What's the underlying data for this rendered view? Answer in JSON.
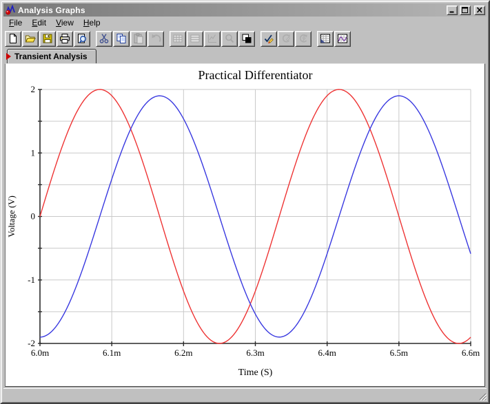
{
  "window": {
    "title": "Analysis Graphs"
  },
  "titlebar_controls": [
    {
      "name": "minimize"
    },
    {
      "name": "maximize"
    },
    {
      "name": "close"
    }
  ],
  "menu": {
    "items": [
      {
        "label": "File"
      },
      {
        "label": "Edit"
      },
      {
        "label": "View"
      },
      {
        "label": "Help"
      }
    ]
  },
  "toolbar": {
    "buttons": [
      {
        "name": "new",
        "disabled": false
      },
      {
        "name": "open",
        "disabled": false
      },
      {
        "name": "save",
        "disabled": false
      },
      {
        "name": "print",
        "disabled": false
      },
      {
        "name": "print-preview",
        "disabled": false
      },
      {
        "name": "cut",
        "disabled": false
      },
      {
        "name": "copy",
        "disabled": false
      },
      {
        "name": "paste",
        "disabled": true
      },
      {
        "name": "undo",
        "disabled": true
      },
      {
        "name": "grid",
        "disabled": true
      },
      {
        "name": "rows",
        "disabled": true
      },
      {
        "name": "chart-limits",
        "disabled": true
      },
      {
        "name": "zoom",
        "disabled": true
      },
      {
        "name": "overlay",
        "disabled": false
      },
      {
        "name": "annotate-check",
        "disabled": false
      },
      {
        "name": "cycle-edit",
        "disabled": true
      },
      {
        "name": "cycle-run",
        "disabled": true
      },
      {
        "name": "data-table",
        "disabled": false
      },
      {
        "name": "graph-page",
        "disabled": false
      }
    ]
  },
  "tabs": [
    {
      "label": "Transient Analysis",
      "active": true
    }
  ],
  "chart_data": {
    "type": "line",
    "title": "Practical Differentiator",
    "xlabel": "Time (S)",
    "ylabel": "Voltage (V)",
    "x_start_ms": 6.0,
    "x_end_ms": 6.6,
    "x_grid_step_ms": 0.1,
    "x_tick_labels": [
      "6.0m",
      "6.1m",
      "6.2m",
      "6.3m",
      "6.4m",
      "6.5m",
      "6.6m"
    ],
    "ylim": [
      -2,
      2
    ],
    "y_grid_step": 0.5,
    "y_tick_label_step": 1,
    "y_tick_labels": [
      "2",
      "1",
      "0",
      "-1",
      "-2"
    ],
    "grid": true,
    "grid_color": "#c9c9c9",
    "axis_color": "#2a2a2a",
    "legend_position": "none",
    "series": [
      {
        "name": "red-curve",
        "color": "#ee3333",
        "waveform": "sine",
        "amplitude_v": 2.0,
        "offset_v": 0,
        "period_ms": 0.33333,
        "phase_deg_at_window_start": 0
      },
      {
        "name": "blue-curve",
        "color": "#3838e0",
        "waveform": "sine",
        "amplitude_v": 1.9,
        "offset_v": 0,
        "period_ms": 0.33333,
        "phase_deg_at_window_start": -90
      }
    ]
  },
  "statusbar": {
    "text": ""
  }
}
